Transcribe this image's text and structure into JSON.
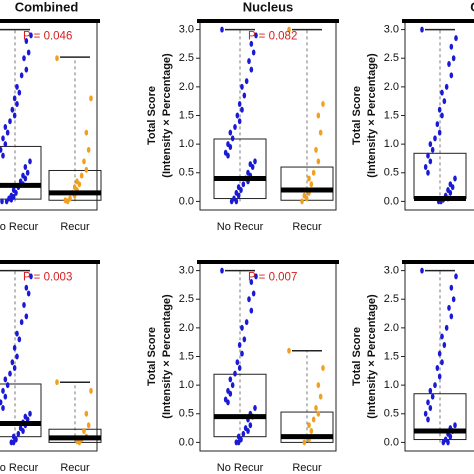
{
  "chart_data": [
    {
      "type": "box",
      "title": "Combined",
      "categories": [
        "No Recur",
        "Recur"
      ],
      "ylim": [
        -0.15,
        3.15
      ],
      "annotation": "P = 0.046",
      "boxes": [
        {
          "color": "#1a1ad6",
          "q1": 0.04,
          "median": 0.28,
          "q3": 0.96,
          "whisker_low": 0,
          "whisker_high": 3.0,
          "points": [
            3.0,
            2.9,
            2.8,
            2.6,
            2.5,
            2.3,
            2.2,
            2.0,
            1.9,
            1.8,
            1.7,
            1.6,
            1.5,
            1.4,
            1.3,
            1.2,
            1.1,
            1.0,
            0.9,
            0.8,
            0.7,
            0.6,
            0.5,
            0.45,
            0.4,
            0.35,
            0.3,
            0.25,
            0.2,
            0.15,
            0.1,
            0.08,
            0.05,
            0.03,
            0.0,
            0.0
          ]
        },
        {
          "color": "#f0a01e",
          "q1": 0.02,
          "median": 0.15,
          "q3": 0.54,
          "whisker_low": 0,
          "whisker_high": 2.52,
          "points": [
            2.5,
            1.8,
            1.2,
            0.9,
            0.7,
            0.55,
            0.45,
            0.35,
            0.3,
            0.25,
            0.2,
            0.15,
            0.1,
            0.05,
            0.02,
            0.0
          ]
        }
      ]
    },
    {
      "type": "box",
      "title": "Nucleus",
      "categories": [
        "No Recur",
        "Recur"
      ],
      "ylim": [
        -0.15,
        3.15
      ],
      "annotation": "P = 0.082",
      "ylabel": [
        "Total Score",
        "(Intensity × Percentage)"
      ],
      "yticks": [
        {
          "value": 0,
          "label": "0.0"
        },
        {
          "value": 0.5,
          "label": "0.5"
        },
        {
          "value": 1,
          "label": "1.0"
        },
        {
          "value": 1.5,
          "label": "1.5"
        },
        {
          "value": 2,
          "label": "2.0"
        },
        {
          "value": 2.5,
          "label": "2.5"
        },
        {
          "value": 3,
          "label": "3.0"
        }
      ],
      "boxes": [
        {
          "color": "#1a1ad6",
          "q1": 0.05,
          "median": 0.4,
          "q3": 1.09,
          "whisker_low": 0,
          "whisker_high": 3.0,
          "points": [
            3.0,
            2.9,
            2.75,
            2.6,
            2.45,
            2.3,
            2.1,
            2.0,
            1.85,
            1.7,
            1.6,
            1.5,
            1.4,
            1.3,
            1.2,
            1.1,
            1.0,
            0.95,
            0.85,
            0.8,
            0.7,
            0.65,
            0.6,
            0.5,
            0.45,
            0.4,
            0.35,
            0.3,
            0.25,
            0.2,
            0.15,
            0.1,
            0.05,
            0.0,
            0.0
          ]
        },
        {
          "color": "#f0a01e",
          "q1": 0.02,
          "median": 0.2,
          "q3": 0.6,
          "whisker_low": 0,
          "whisker_high": 3.0,
          "points": [
            3.0,
            1.7,
            1.5,
            1.2,
            0.9,
            0.7,
            0.5,
            0.4,
            0.3,
            0.2,
            0.15,
            0.1,
            0.05,
            0.0
          ]
        }
      ]
    },
    {
      "type": "box",
      "title": "C",
      "categories": [
        null
      ],
      "ylim": [
        -0.15,
        3.15
      ],
      "ylabel": [
        "Total Score",
        "(Intensity × Percentage)"
      ],
      "yticks": [
        {
          "value": 0,
          "label": "0.0"
        },
        {
          "value": 0.5,
          "label": "0.5"
        },
        {
          "value": 1,
          "label": "1.0"
        },
        {
          "value": 1.5,
          "label": "1.5"
        },
        {
          "value": 2,
          "label": "2.0"
        },
        {
          "value": 2.5,
          "label": "2.5"
        },
        {
          "value": 3,
          "label": "3.0"
        }
      ],
      "boxes": [
        {
          "color": "#1a1ad6",
          "q1": 0.05,
          "median": 0.05,
          "q3": 0.84,
          "whisker_low": 0,
          "whisker_high": 3.0,
          "points": [
            3.0,
            2.85,
            2.7,
            2.5,
            2.4,
            2.2,
            2.0,
            1.9,
            1.75,
            1.6,
            1.5,
            1.35,
            1.2,
            1.1,
            1.0,
            0.9,
            0.8,
            0.7,
            0.6,
            0.5,
            0.4,
            0.3,
            0.25,
            0.2,
            0.15,
            0.1,
            0.05,
            0.03,
            0.0,
            0.0
          ]
        }
      ]
    },
    {
      "type": "box",
      "categories": [
        "No Recur",
        "Recur"
      ],
      "ylim": [
        -0.15,
        3.15
      ],
      "annotation": "P = 0.003",
      "boxes": [
        {
          "color": "#1a1ad6",
          "q1": 0.1,
          "median": 0.33,
          "q3": 1.02,
          "whisker_low": 0,
          "whisker_high": 3.0,
          "points": [
            3.0,
            2.9,
            2.7,
            2.6,
            2.4,
            2.2,
            2.1,
            1.9,
            1.8,
            1.65,
            1.5,
            1.4,
            1.3,
            1.2,
            1.1,
            1.0,
            0.9,
            0.8,
            0.7,
            0.6,
            0.5,
            0.45,
            0.4,
            0.35,
            0.3,
            0.25,
            0.2,
            0.15,
            0.1,
            0.05,
            0.0,
            0.0
          ]
        },
        {
          "color": "#f0a01e",
          "q1": 0.0,
          "median": 0.08,
          "q3": 0.23,
          "whisker_low": 0,
          "whisker_high": 1.05,
          "points": [
            1.05,
            0.9,
            0.5,
            0.3,
            0.2,
            0.1,
            0.05,
            0.02,
            0.0
          ]
        }
      ]
    },
    {
      "type": "box",
      "categories": [
        "No Recur",
        "Recur"
      ],
      "ylim": [
        -0.15,
        3.15
      ],
      "annotation": "P = 0.007",
      "ylabel": [
        "Total Score",
        "(Intensity × Percentage)"
      ],
      "yticks": [
        {
          "value": 0,
          "label": "0.0"
        },
        {
          "value": 0.5,
          "label": "0.5"
        },
        {
          "value": 1,
          "label": "1.0"
        },
        {
          "value": 1.5,
          "label": "1.5"
        },
        {
          "value": 2,
          "label": "2.0"
        },
        {
          "value": 2.5,
          "label": "2.5"
        },
        {
          "value": 3,
          "label": "3.0"
        }
      ],
      "boxes": [
        {
          "color": "#1a1ad6",
          "q1": 0.1,
          "median": 0.45,
          "q3": 1.19,
          "whisker_low": 0,
          "whisker_high": 3.0,
          "points": [
            3.0,
            2.9,
            2.8,
            2.6,
            2.5,
            2.3,
            2.1,
            2.0,
            1.8,
            1.7,
            1.55,
            1.4,
            1.3,
            1.2,
            1.1,
            1.0,
            0.9,
            0.85,
            0.75,
            0.7,
            0.6,
            0.5,
            0.45,
            0.4,
            0.3,
            0.25,
            0.2,
            0.15,
            0.1,
            0.05,
            0.0,
            0.0
          ]
        },
        {
          "color": "#f0a01e",
          "q1": 0.0,
          "median": 0.1,
          "q3": 0.53,
          "whisker_low": 0,
          "whisker_high": 1.6,
          "points": [
            1.6,
            1.3,
            1.0,
            0.8,
            0.6,
            0.5,
            0.4,
            0.3,
            0.2,
            0.1,
            0.05,
            0.0
          ]
        }
      ]
    },
    {
      "type": "box",
      "categories": [
        null
      ],
      "ylim": [
        -0.15,
        3.15
      ],
      "ylabel": [
        "Total Score",
        "(Intensity × Percentage)"
      ],
      "yticks": [
        {
          "value": 0,
          "label": "0.0"
        },
        {
          "value": 0.5,
          "label": "0.5"
        },
        {
          "value": 1,
          "label": "1.0"
        },
        {
          "value": 1.5,
          "label": "1.5"
        },
        {
          "value": 2,
          "label": "2.0"
        },
        {
          "value": 2.5,
          "label": "2.5"
        },
        {
          "value": 3,
          "label": "3.0"
        }
      ],
      "boxes": [
        {
          "color": "#1a1ad6",
          "q1": 0.05,
          "median": 0.2,
          "q3": 0.85,
          "whisker_low": 0,
          "whisker_high": 3.0,
          "points": [
            3.0,
            2.9,
            2.7,
            2.5,
            2.35,
            2.2,
            2.0,
            1.85,
            1.7,
            1.55,
            1.4,
            1.3,
            1.15,
            1.0,
            0.9,
            0.8,
            0.7,
            0.6,
            0.5,
            0.4,
            0.3,
            0.25,
            0.2,
            0.15,
            0.1,
            0.05,
            0.0,
            0.0
          ]
        }
      ]
    }
  ]
}
